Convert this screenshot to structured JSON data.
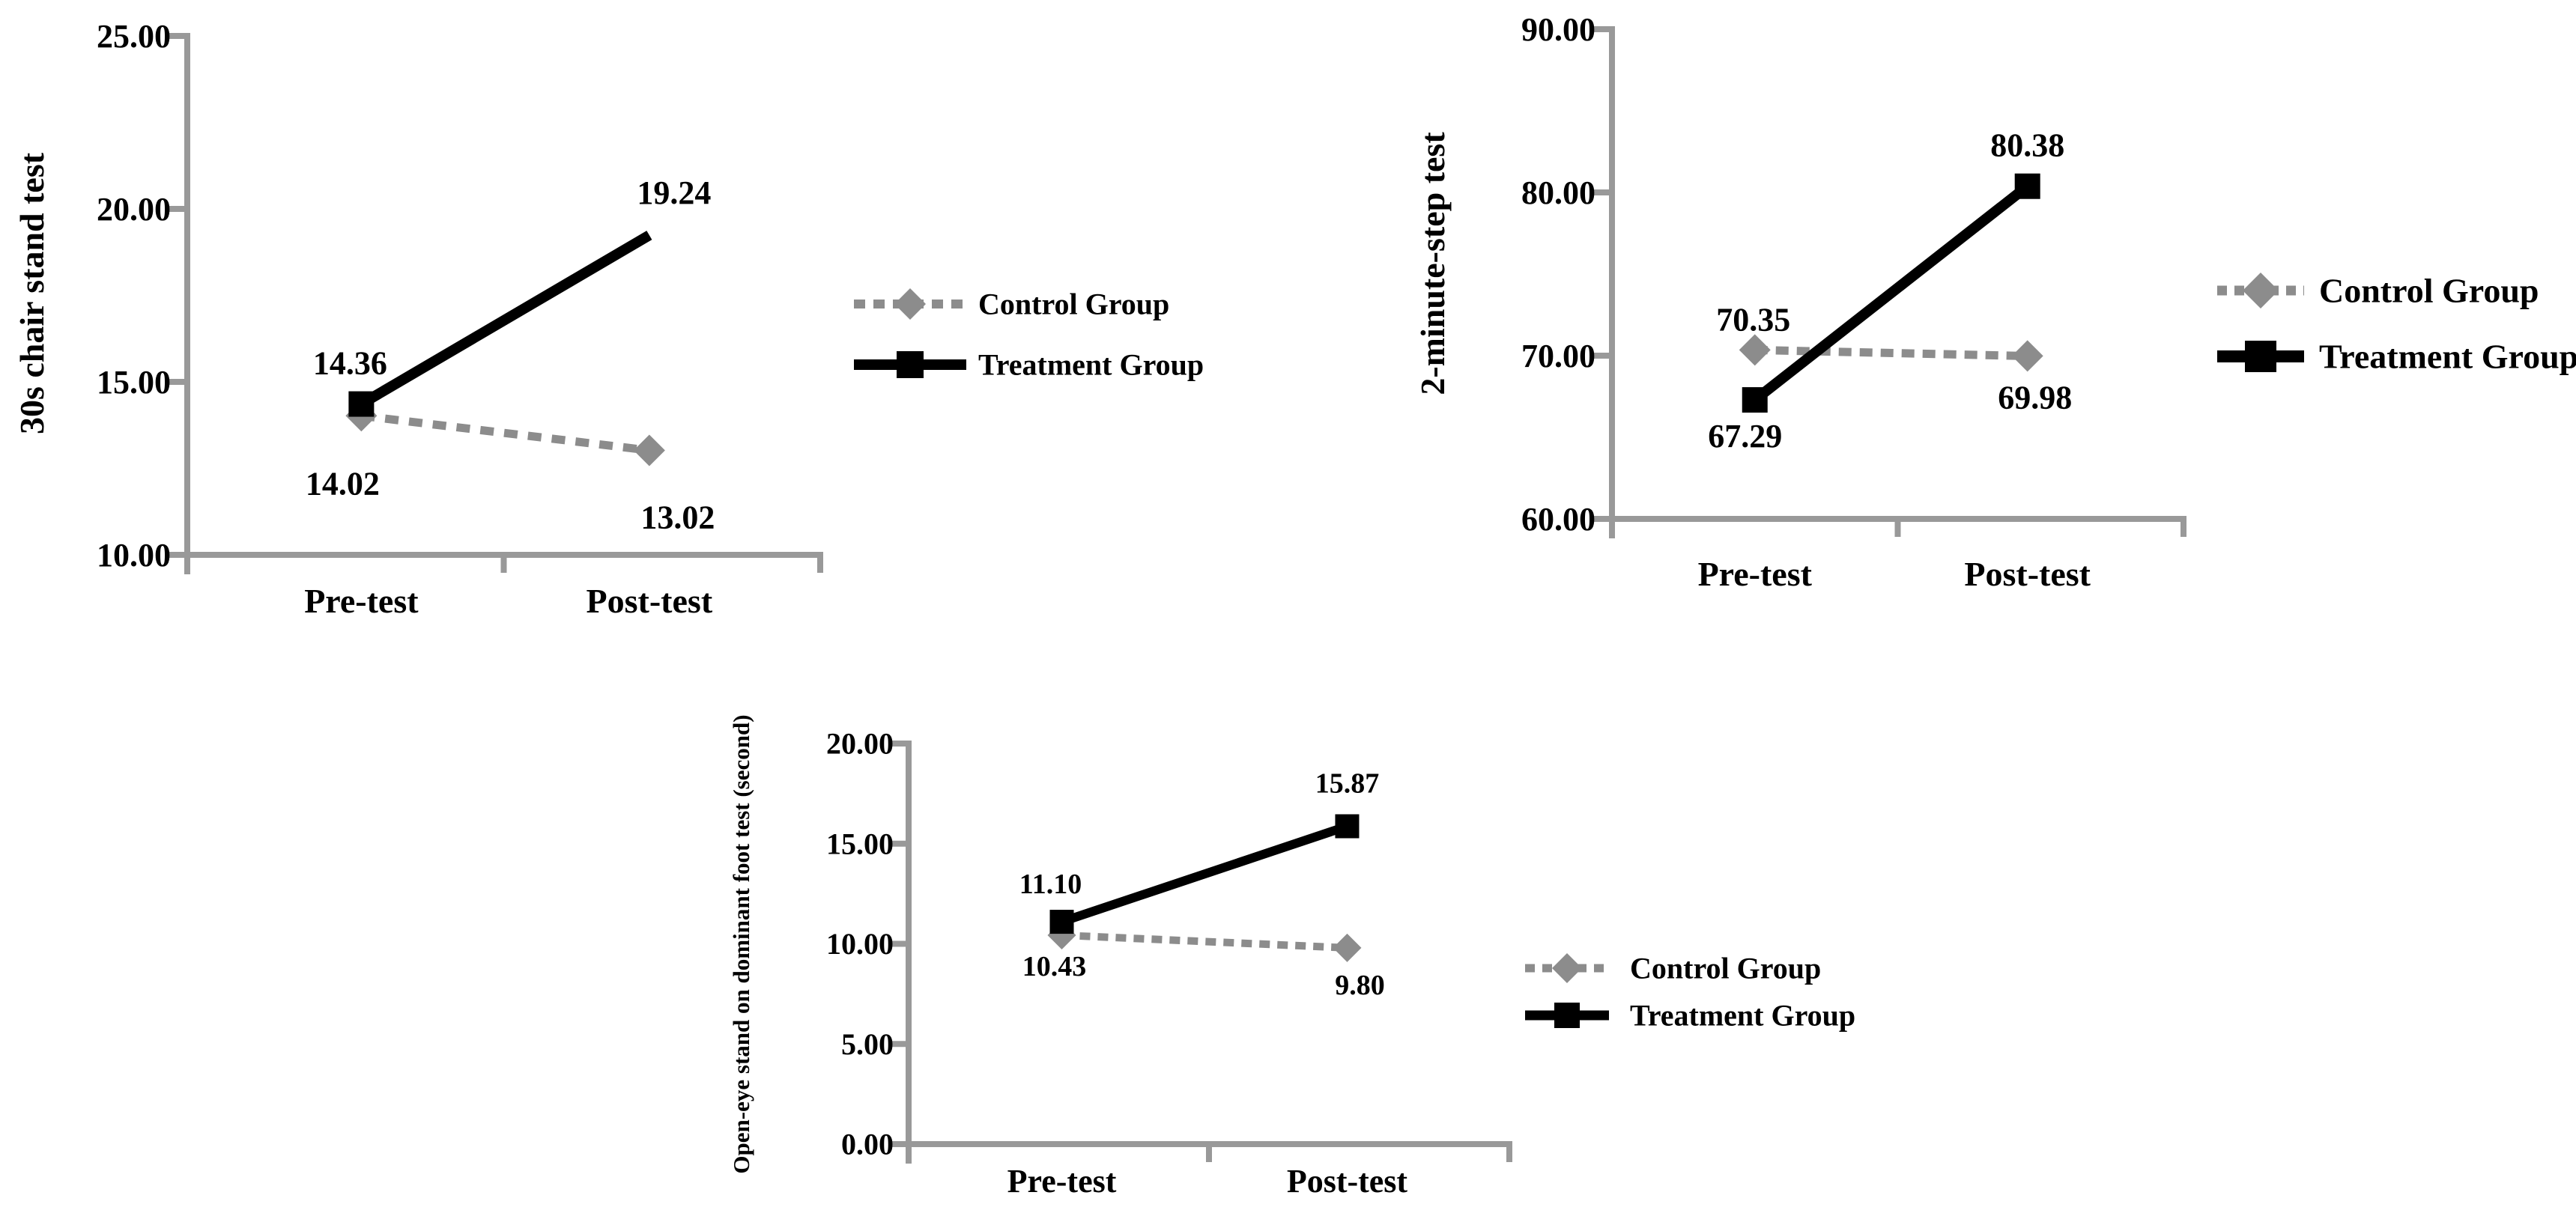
{
  "page": {
    "background": "#ffffff"
  },
  "colors": {
    "treatment": "#000000",
    "control": "#8c8c8c",
    "axis": "#999999",
    "text": "#000000"
  },
  "legend": {
    "control_label": "Control Group",
    "treatment_label": "Treatment Group"
  },
  "chart_data": [
    {
      "type": "line",
      "title": "",
      "ylabel": "30s chair stand test",
      "xlabel": "",
      "categories": [
        "Pre-test",
        "Post-test"
      ],
      "series": [
        {
          "name": "Control Group",
          "values": [
            14.02,
            13.02
          ],
          "labels": [
            "14.02",
            "13.02"
          ],
          "color": "#8c8c8c",
          "style": "dashed",
          "marker": "diamond",
          "markers_shown": [
            true,
            true
          ]
        },
        {
          "name": "Treatment Group",
          "values": [
            14.36,
            19.24
          ],
          "labels": [
            "14.36",
            "19.24"
          ],
          "color": "#000000",
          "style": "solid",
          "marker": "square",
          "markers_shown": [
            true,
            false
          ]
        }
      ],
      "ylim": [
        10,
        25
      ],
      "yticks": [
        "25.00",
        "20.00",
        "15.00",
        "10.00"
      ],
      "grid": false,
      "legend_position": "right"
    },
    {
      "type": "line",
      "title": "",
      "ylabel": "2-minute-step test",
      "xlabel": "",
      "categories": [
        "Pre-test",
        "Post-test"
      ],
      "series": [
        {
          "name": "Control Group",
          "values": [
            70.35,
            69.98
          ],
          "labels": [
            "70.35",
            "69.98"
          ],
          "color": "#8c8c8c",
          "style": "dashed",
          "marker": "diamond",
          "markers_shown": [
            true,
            true
          ]
        },
        {
          "name": "Treatment Group",
          "values": [
            67.29,
            80.38
          ],
          "labels": [
            "67.29",
            "80.38"
          ],
          "color": "#000000",
          "style": "solid",
          "marker": "square",
          "markers_shown": [
            true,
            true
          ]
        }
      ],
      "ylim": [
        60,
        90
      ],
      "yticks": [
        "90.00",
        "80.00",
        "70.00",
        "60.00"
      ],
      "grid": false,
      "legend_position": "right"
    },
    {
      "type": "line",
      "title": "",
      "ylabel": "Open-eye stand on dominant foot test (second)",
      "xlabel": "",
      "categories": [
        "Pre-test",
        "Post-test"
      ],
      "series": [
        {
          "name": "Control Group",
          "values": [
            10.43,
            9.8
          ],
          "labels": [
            "10.43",
            "9.80"
          ],
          "color": "#8c8c8c",
          "style": "dashed",
          "marker": "diamond",
          "markers_shown": [
            true,
            true
          ]
        },
        {
          "name": "Treatment Group",
          "values": [
            11.1,
            15.87
          ],
          "labels": [
            "11.10",
            "15.87"
          ],
          "color": "#000000",
          "style": "solid",
          "marker": "square",
          "markers_shown": [
            true,
            true
          ]
        }
      ],
      "ylim": [
        0,
        20
      ],
      "yticks": [
        "20.00",
        "15.00",
        "10.00",
        "5.00",
        "0.00"
      ],
      "grid": false,
      "legend_position": "right"
    }
  ]
}
